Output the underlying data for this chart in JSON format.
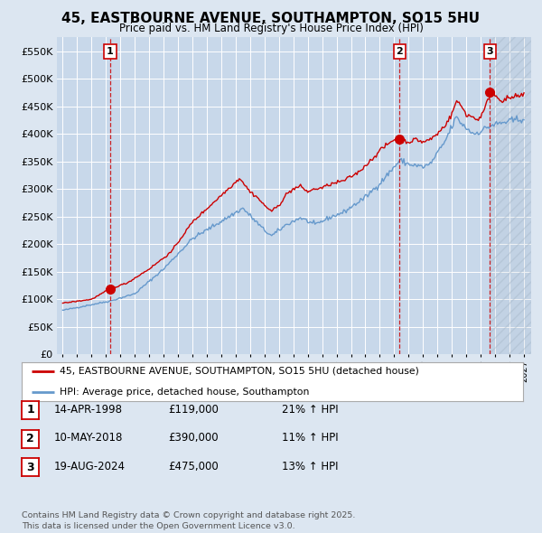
{
  "title": "45, EASTBOURNE AVENUE, SOUTHAMPTON, SO15 5HU",
  "subtitle": "Price paid vs. HM Land Registry's House Price Index (HPI)",
  "background_color": "#dce6f1",
  "plot_bg_color": "#c8d8ea",
  "grid_color": "#ffffff",
  "ylim": [
    0,
    575000
  ],
  "yticks": [
    0,
    50000,
    100000,
    150000,
    200000,
    250000,
    300000,
    350000,
    400000,
    450000,
    500000,
    550000
  ],
  "x_start_year": 1995,
  "x_end_year": 2027,
  "sale_color": "#cc0000",
  "hpi_color": "#6699cc",
  "legend_entries": [
    "45, EASTBOURNE AVENUE, SOUTHAMPTON, SO15 5HU (detached house)",
    "HPI: Average price, detached house, Southampton"
  ],
  "table_rows": [
    {
      "num": "1",
      "date": "14-APR-1998",
      "price": "£119,000",
      "change": "21% ↑ HPI"
    },
    {
      "num": "2",
      "date": "10-MAY-2018",
      "price": "£390,000",
      "change": "11% ↑ HPI"
    },
    {
      "num": "3",
      "date": "19-AUG-2024",
      "price": "£475,000",
      "change": "13% ↑ HPI"
    }
  ],
  "footer": "Contains HM Land Registry data © Crown copyright and database right 2025.\nThis data is licensed under the Open Government Licence v3.0.",
  "hpi_anchors": {
    "1995.0": 80000,
    "1998.3": 97000,
    "2000.0": 110000,
    "2002.0": 155000,
    "2004.0": 210000,
    "2007.5": 265000,
    "2009.0": 225000,
    "2009.5": 215000,
    "2010.5": 235000,
    "2011.5": 248000,
    "2012.5": 235000,
    "2013.5": 248000,
    "2014.5": 258000,
    "2016.0": 285000,
    "2017.0": 310000,
    "2018.4": 352000,
    "2019.0": 345000,
    "2020.0": 340000,
    "2020.5": 345000,
    "2021.5": 385000,
    "2022.3": 430000,
    "2022.8": 415000,
    "2023.5": 400000,
    "2024.0": 405000,
    "2024.7": 415000,
    "2025.5": 420000,
    "2027.0": 428000
  },
  "prop_anchors": {
    "1995.0": 93000,
    "1997.0": 100000,
    "1998.3": 119000,
    "1999.5": 130000,
    "2001.0": 155000,
    "2002.5": 185000,
    "2004.0": 240000,
    "2007.3": 320000,
    "2007.7": 305000,
    "2008.0": 295000,
    "2008.5": 285000,
    "2009.0": 270000,
    "2009.5": 260000,
    "2010.0": 270000,
    "2010.5": 290000,
    "2011.0": 300000,
    "2011.5": 305000,
    "2012.0": 295000,
    "2012.5": 300000,
    "2013.0": 302000,
    "2013.5": 308000,
    "2014.5": 315000,
    "2015.5": 330000,
    "2016.5": 355000,
    "2017.0": 370000,
    "2017.5": 380000,
    "2018.0": 390000,
    "2018.4": 390000,
    "2019.0": 385000,
    "2019.5": 390000,
    "2020.0": 385000,
    "2020.5": 390000,
    "2021.0": 400000,
    "2021.5": 415000,
    "2022.0": 435000,
    "2022.3": 460000,
    "2022.5": 455000,
    "2022.8": 445000,
    "2023.0": 435000,
    "2023.5": 430000,
    "2023.8": 425000,
    "2024.2": 440000,
    "2024.7": 475000,
    "2025.0": 470000,
    "2025.5": 460000,
    "2026.0": 465000,
    "2027.0": 470000
  }
}
